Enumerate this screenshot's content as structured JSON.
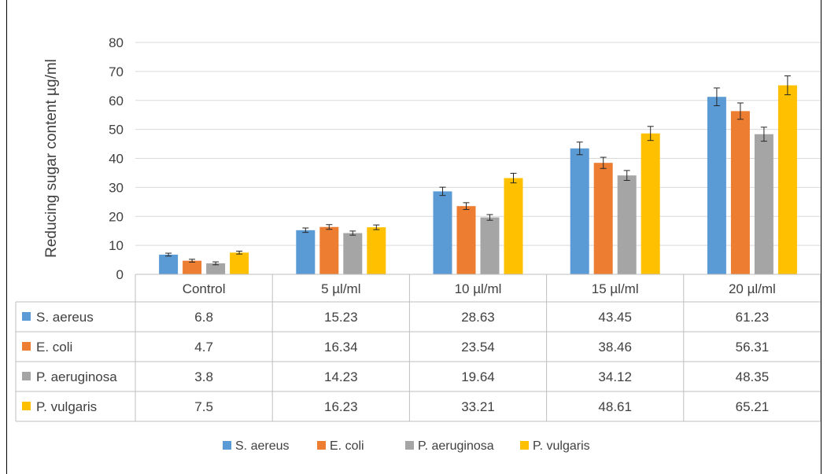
{
  "chart_data": {
    "type": "bar",
    "title": "",
    "xlabel": "",
    "ylabel": "Reducing sugar content µg/ml",
    "ylim": [
      0,
      80
    ],
    "yticks": [
      0,
      10,
      20,
      30,
      40,
      50,
      60,
      70,
      80
    ],
    "grid": true,
    "legend": "bottom",
    "error_bars": true,
    "categories": [
      "Control",
      "5 µl/ml",
      "10 µl/ml",
      "15 µl/ml",
      "20 µl/ml"
    ],
    "series": [
      {
        "name": "S. aereus",
        "color": "#5B9BD5",
        "values": [
          6.8,
          15.23,
          28.63,
          43.45,
          61.23
        ],
        "table": [
          "6.8",
          "15.23",
          "28.63",
          "43.45",
          "61.23"
        ]
      },
      {
        "name": "E. coli",
        "color": "#ED7D31",
        "values": [
          4.7,
          16.34,
          23.54,
          38.46,
          56.31
        ],
        "table": [
          "4.7",
          "16.34",
          "23.54",
          "38.46",
          "56.31"
        ]
      },
      {
        "name": "P. aeruginosa",
        "color": "#A5A5A5",
        "values": [
          3.8,
          14.23,
          19.64,
          34.12,
          48.35
        ],
        "table": [
          "3.8",
          "14.23",
          "19.64",
          "34.12",
          "48.35"
        ]
      },
      {
        "name": "P. vulgaris",
        "color": "#FFC000",
        "values": [
          7.5,
          16.23,
          33.21,
          48.61,
          65.21
        ],
        "table": [
          "7.5",
          "16.23",
          "33.21",
          "48.61",
          "65.21"
        ]
      }
    ]
  }
}
